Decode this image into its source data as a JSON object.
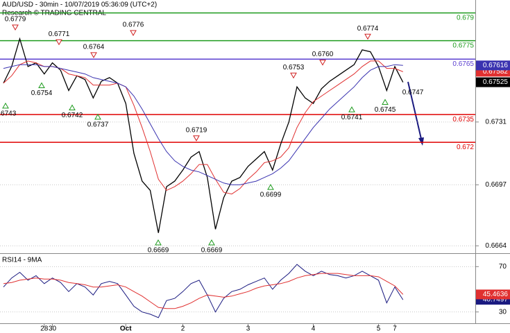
{
  "chart_data": [
    {
      "type": "line",
      "title": "AUD/USD - 30min - 10/07/2019 05:36:09 (UTC+2)",
      "subtitle": "Research © TRADING CENTRAL",
      "categories": [
        null,
        null,
        null,
        null,
        null,
        "28",
        "30",
        null,
        null,
        null,
        null,
        null,
        null,
        null,
        null,
        "Oct",
        null,
        null,
        null,
        null,
        null,
        null,
        "2",
        null,
        null,
        null,
        null,
        null,
        null,
        null,
        "3",
        null,
        null,
        null,
        null,
        null,
        null,
        null,
        "4",
        null,
        null,
        null,
        null,
        null,
        null,
        null,
        "5",
        null,
        "7",
        null
      ],
      "series": [
        {
          "color": "#000000",
          "values": [
            0.6752,
            0.6761,
            0.6776,
            0.6761,
            0.6763,
            0.6757,
            0.6763,
            0.6759,
            0.6748,
            0.6756,
            0.6754,
            0.6744,
            0.6753,
            0.6755,
            0.6752,
            0.6741,
            0.6714,
            0.6699,
            0.6694,
            0.6671,
            0.6696,
            0.6699,
            0.6705,
            0.6712,
            0.6715,
            0.6701,
            0.6673,
            0.669,
            0.6699,
            0.6701,
            0.6707,
            0.6711,
            0.6715,
            0.6705,
            0.6719,
            0.6731,
            0.675,
            0.6744,
            0.6741,
            0.6749,
            0.6753,
            0.6756,
            0.6759,
            0.6762,
            0.677,
            0.6769,
            0.6761,
            0.6748,
            0.6761,
            0.67525
          ]
        },
        {
          "color": "#e03030",
          "values": [
            0.6752,
            0.6756,
            0.6762,
            0.6764,
            0.6763,
            0.6761,
            0.6761,
            0.676,
            0.6757,
            0.6756,
            0.6755,
            0.6751,
            0.6751,
            0.6751,
            0.6752,
            0.675,
            0.674,
            0.6728,
            0.6715,
            0.67,
            0.6694,
            0.6696,
            0.6699,
            0.6703,
            0.6708,
            0.6708,
            0.67,
            0.6693,
            0.6692,
            0.6695,
            0.67,
            0.6704,
            0.6709,
            0.671,
            0.6712,
            0.6717,
            0.6728,
            0.6736,
            0.6742,
            0.6745,
            0.6748,
            0.6751,
            0.6754,
            0.6757,
            0.6761,
            0.6764,
            0.6764,
            0.676,
            0.676,
            0.67582
          ]
        },
        {
          "color": "#3a33b0",
          "values": [
            0.676,
            0.6761,
            0.6762,
            0.6762,
            0.6762,
            0.6761,
            0.6761,
            0.676,
            0.6759,
            0.6758,
            0.6757,
            0.6755,
            0.6754,
            0.6753,
            0.6752,
            0.675,
            0.6745,
            0.6738,
            0.673,
            0.6722,
            0.6715,
            0.671,
            0.6707,
            0.6705,
            0.6704,
            0.6702,
            0.67,
            0.6698,
            0.6697,
            0.6697,
            0.6698,
            0.6699,
            0.6701,
            0.6703,
            0.6706,
            0.671,
            0.6716,
            0.6722,
            0.6728,
            0.6733,
            0.6738,
            0.6742,
            0.6746,
            0.675,
            0.6755,
            0.6759,
            0.6761,
            0.6761,
            0.6762,
            0.67616
          ]
        }
      ],
      "levels": [
        {
          "value": 0.679,
          "color": "#1e9b1e"
        },
        {
          "value": 0.6775,
          "color": "#1e9b1e"
        },
        {
          "value": 0.6765,
          "color": "#5b3fd0"
        },
        {
          "value": 0.6735,
          "color": "#e00000"
        },
        {
          "value": 0.672,
          "color": "#e00000"
        }
      ],
      "annotations": [
        0.6779,
        0.6771,
        0.6764,
        0.6776,
        0.6754,
        0.6743,
        0.6742,
        0.6737,
        0.6719,
        0.6699,
        0.6669,
        0.6669,
        0.6753,
        {
          "value": 0.676,
          "label": "0.6760"
        },
        0.6774,
        0.6741,
        0.6745,
        0.6747
      ],
      "ylim": [
        0.666,
        0.6797
      ],
      "yticks": [
        0.6664,
        0.6697,
        0.6731
      ],
      "grid": true
    },
    {
      "type": "line",
      "title": "RSI14 - 9MA",
      "series": [
        {
          "color": "#1a1a80",
          "values": [
            52,
            60,
            65,
            58,
            62,
            55,
            60,
            56,
            48,
            55,
            52,
            45,
            55,
            57,
            55,
            45,
            35,
            30,
            28,
            25,
            40,
            42,
            48,
            55,
            58,
            45,
            30,
            42,
            48,
            50,
            54,
            57,
            60,
            50,
            58,
            64,
            72,
            66,
            62,
            66,
            63,
            62,
            60,
            62,
            66,
            62,
            58,
            38,
            52,
            40.7497
          ]
        },
        {
          "color": "#e03030",
          "values": [
            55,
            56,
            58,
            59,
            60,
            59,
            59,
            58,
            56,
            55,
            54,
            52,
            52,
            53,
            54,
            52,
            48,
            44,
            39,
            34,
            33,
            33,
            35,
            38,
            42,
            45,
            44,
            43,
            44,
            46,
            48,
            51,
            53,
            54,
            55,
            57,
            60,
            62,
            63,
            64,
            64,
            64,
            63,
            62,
            62,
            62,
            61,
            57,
            53,
            45.4636
          ]
        }
      ],
      "ylim": [
        20,
        80
      ],
      "yticks": [
        30,
        70
      ],
      "grid": true
    }
  ]
}
